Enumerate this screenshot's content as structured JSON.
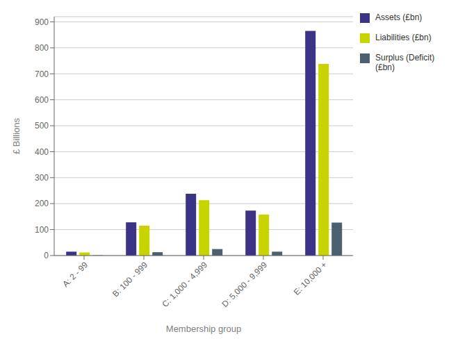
{
  "chart_data": {
    "type": "bar",
    "categories": [
      "A: 2 - 99",
      "B: 100 - 999",
      "C: 1,000 - 4,999",
      "D: 5,000 - 9,999",
      "E: 10,000 +"
    ],
    "series": [
      {
        "name": "Assets (£bn)",
        "color": "#3b3486",
        "values": [
          15,
          128,
          238,
          173,
          865
        ]
      },
      {
        "name": "Liabilities (£bn)",
        "color": "#c8d400",
        "values": [
          12,
          115,
          213,
          158,
          738
        ]
      },
      {
        "name": "Surplus (Deficit)\n(£bn)",
        "color": "#4d6070",
        "values": [
          1,
          13,
          25,
          15,
          127
        ]
      }
    ],
    "xlabel": "Membership group",
    "ylabel": "£ Billions",
    "ylim": [
      0,
      920
    ],
    "yticks": [
      0,
      100,
      200,
      300,
      400,
      500,
      600,
      700,
      800,
      900
    ],
    "grid": true,
    "legend": "right"
  }
}
